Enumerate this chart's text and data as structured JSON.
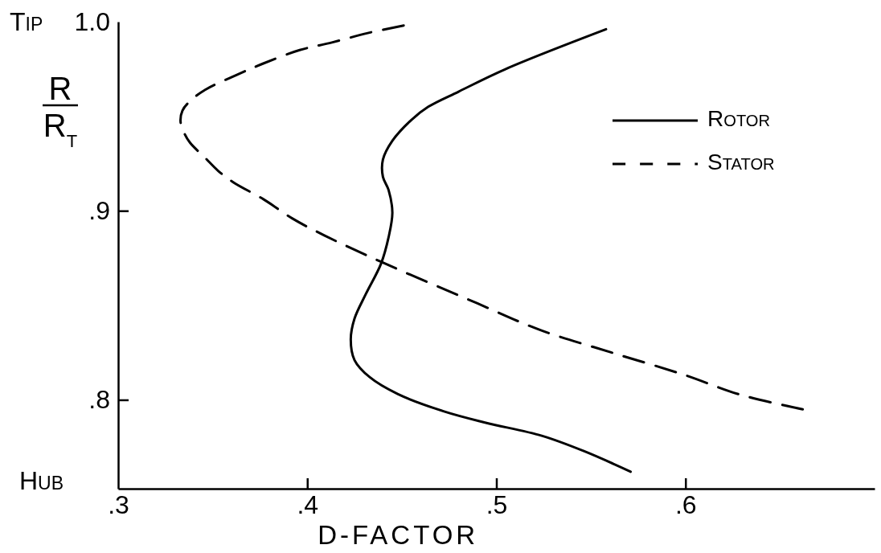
{
  "chart_data": {
    "type": "line",
    "xlabel": "D-FACTOR",
    "ylabel": "R\nR$_{T}$",
    "xlim": [
      0.3,
      0.7
    ],
    "xticks": [
      {
        "value": 0.3,
        "label": ".3"
      },
      {
        "value": 0.4,
        "label": ".4"
      },
      {
        "value": 0.5,
        "label": ".5"
      },
      {
        "value": 0.6,
        "label": ".6"
      }
    ],
    "ylim": [
      0.753,
      1.0
    ],
    "yticks": [
      {
        "value": 0.8,
        "label": ".8"
      },
      {
        "value": 0.9,
        "label": ".9"
      },
      {
        "value": 1.0,
        "label": "1.0"
      }
    ],
    "legend": "top right",
    "annotations": [
      "TIP",
      "HUB"
    ],
    "series": [
      {
        "name": "ROTOR",
        "color": "#000000",
        "line_style": "solid",
        "x": [
          0.558,
          0.505,
          0.48,
          0.464,
          0.455,
          0.445,
          0.44,
          0.44,
          0.443,
          0.445,
          0.443,
          0.439,
          0.431,
          0.425,
          0.423,
          0.425,
          0.433,
          0.448,
          0.472,
          0.494,
          0.524,
          0.546,
          0.571
        ],
        "values": [
          0.996,
          0.975,
          0.963,
          0.955,
          0.948,
          0.937,
          0.927,
          0.918,
          0.911,
          0.899,
          0.886,
          0.872,
          0.856,
          0.843,
          0.832,
          0.821,
          0.812,
          0.803,
          0.794,
          0.788,
          0.781,
          0.773,
          0.762
        ]
      },
      {
        "name": "STATOR",
        "color": "#000000",
        "line_style": "dashed",
        "x": [
          0.451,
          0.432,
          0.413,
          0.396,
          0.377,
          0.363,
          0.346,
          0.338,
          0.334,
          0.333,
          0.335,
          0.338,
          0.346,
          0.353,
          0.361,
          0.377,
          0.392,
          0.409,
          0.439,
          0.49,
          0.523,
          0.561,
          0.6,
          0.628,
          0.662
        ],
        "values": [
          0.998,
          0.994,
          0.989,
          0.985,
          0.978,
          0.972,
          0.964,
          0.958,
          0.953,
          0.947,
          0.941,
          0.936,
          0.928,
          0.921,
          0.915,
          0.906,
          0.896,
          0.887,
          0.873,
          0.851,
          0.837,
          0.825,
          0.813,
          0.803,
          0.795
        ]
      }
    ]
  }
}
